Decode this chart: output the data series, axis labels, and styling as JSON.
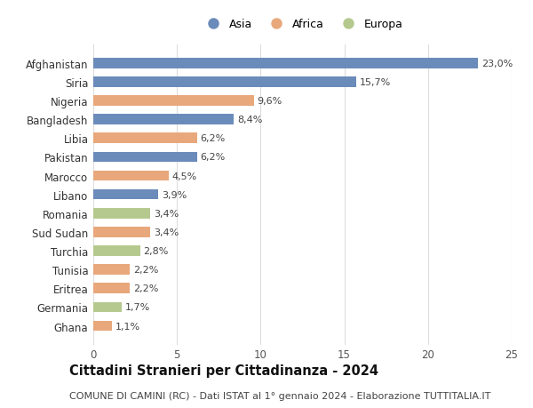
{
  "categories": [
    "Afghanistan",
    "Siria",
    "Nigeria",
    "Bangladesh",
    "Libia",
    "Pakistan",
    "Marocco",
    "Libano",
    "Romania",
    "Sud Sudan",
    "Turchia",
    "Tunisia",
    "Eritrea",
    "Germania",
    "Ghana"
  ],
  "values": [
    23.0,
    15.7,
    9.6,
    8.4,
    6.2,
    6.2,
    4.5,
    3.9,
    3.4,
    3.4,
    2.8,
    2.2,
    2.2,
    1.7,
    1.1
  ],
  "labels": [
    "23,0%",
    "15,7%",
    "9,6%",
    "8,4%",
    "6,2%",
    "6,2%",
    "4,5%",
    "3,9%",
    "3,4%",
    "3,4%",
    "2,8%",
    "2,2%",
    "2,2%",
    "1,7%",
    "1,1%"
  ],
  "continents": [
    "Asia",
    "Asia",
    "Africa",
    "Asia",
    "Africa",
    "Asia",
    "Africa",
    "Asia",
    "Europa",
    "Africa",
    "Europa",
    "Africa",
    "Africa",
    "Europa",
    "Africa"
  ],
  "colors": {
    "Asia": "#6b8cba",
    "Africa": "#e8a87c",
    "Europa": "#b5c98e"
  },
  "legend_labels": [
    "Asia",
    "Africa",
    "Europa"
  ],
  "xlim": [
    0,
    25
  ],
  "xticks": [
    0,
    5,
    10,
    15,
    20,
    25
  ],
  "title": "Cittadini Stranieri per Cittadinanza - 2024",
  "subtitle": "COMUNE DI CAMINI (RC) - Dati ISTAT al 1° gennaio 2024 - Elaborazione TUTTITALIA.IT",
  "title_fontsize": 10.5,
  "subtitle_fontsize": 8,
  "background_color": "#ffffff",
  "grid_color": "#dddddd"
}
